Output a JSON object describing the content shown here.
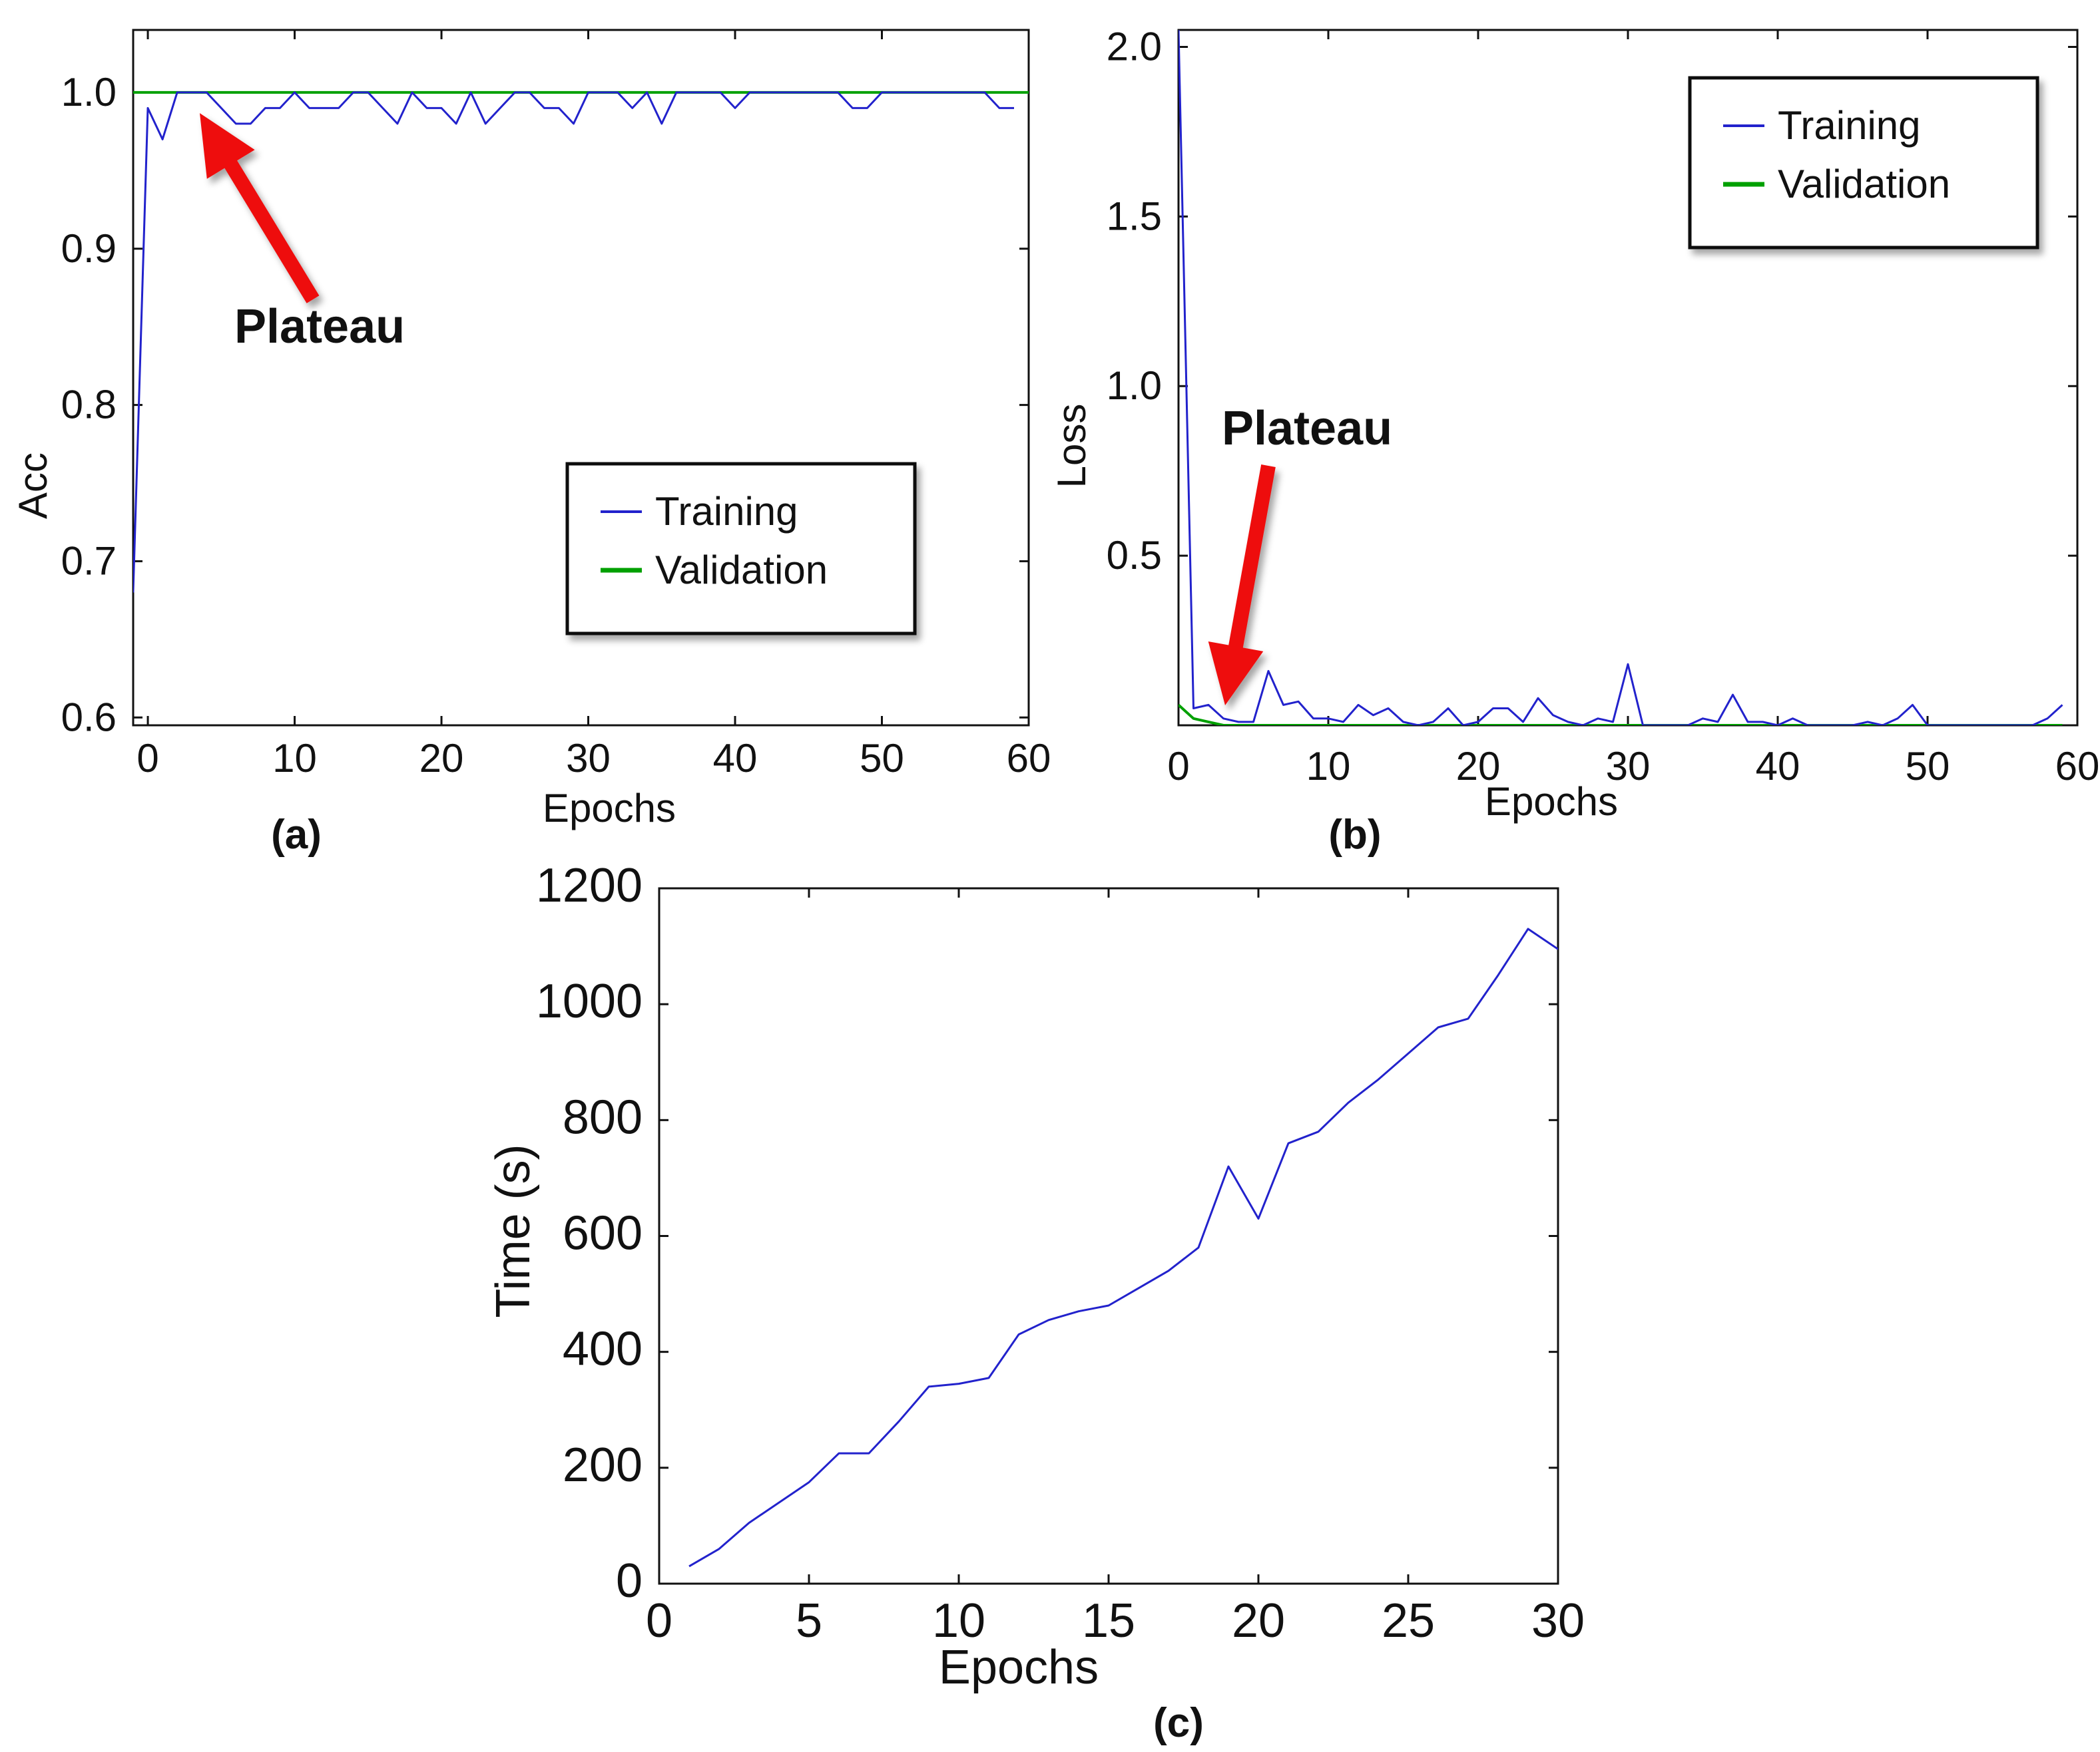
{
  "colors": {
    "training": "#2222cc",
    "validation": "#00a000",
    "arrow": "#ee1111",
    "axis": "#111111"
  },
  "chart_data": [
    {
      "id": "a",
      "type": "line",
      "panel_label": "(a)",
      "xlabel": "Epochs",
      "ylabel": "Acc",
      "xlim": [
        -1,
        60
      ],
      "ylim": [
        0.595,
        1.04
      ],
      "xticks": [
        0,
        10,
        20,
        30,
        40,
        50,
        60
      ],
      "xtick_labels": [
        "0",
        "10",
        "20",
        "30",
        "40",
        "50",
        "60"
      ],
      "yticks": [
        0.6,
        0.7,
        0.8,
        0.9,
        1.0
      ],
      "ytick_labels": [
        "0.6",
        "0.7",
        "0.8",
        "0.9",
        "1.0"
      ],
      "legend": {
        "entries": [
          "Training",
          "Validation"
        ],
        "placement": "center-right"
      },
      "annotation": {
        "text": "Plateau",
        "points_to": [
          4,
          1.0
        ]
      },
      "series": [
        {
          "name": "Training",
          "color_key": "training",
          "x": [
            -1,
            0,
            1,
            2,
            3,
            4,
            5,
            6,
            7,
            8,
            9,
            10,
            11,
            12,
            13,
            14,
            15,
            16,
            17,
            18,
            19,
            20,
            21,
            22,
            23,
            24,
            25,
            26,
            27,
            28,
            29,
            30,
            31,
            32,
            33,
            34,
            35,
            36,
            37,
            38,
            39,
            40,
            41,
            42,
            43,
            44,
            45,
            46,
            47,
            48,
            49,
            50,
            51,
            52,
            53,
            54,
            55,
            56,
            57,
            58,
            59
          ],
          "y": [
            0.68,
            0.99,
            0.97,
            1.0,
            1.0,
            1.0,
            0.99,
            0.98,
            0.98,
            0.99,
            0.99,
            1.0,
            0.99,
            0.99,
            0.99,
            1.0,
            1.0,
            0.99,
            0.98,
            1.0,
            0.99,
            0.99,
            0.98,
            1.0,
            0.98,
            0.99,
            1.0,
            1.0,
            0.99,
            0.99,
            0.98,
            1.0,
            1.0,
            1.0,
            0.99,
            1.0,
            0.98,
            1.0,
            1.0,
            1.0,
            1.0,
            0.99,
            1.0,
            1.0,
            1.0,
            1.0,
            1.0,
            1.0,
            1.0,
            0.99,
            0.99,
            1.0,
            1.0,
            1.0,
            1.0,
            1.0,
            1.0,
            1.0,
            1.0,
            0.99,
            0.99
          ]
        },
        {
          "name": "Validation",
          "color_key": "validation",
          "x": [
            -1,
            60
          ],
          "y": [
            1.0,
            1.0
          ]
        }
      ]
    },
    {
      "id": "b",
      "type": "line",
      "panel_label": "(b)",
      "xlabel": "Epochs",
      "ylabel": "Loss",
      "xlim": [
        0,
        60
      ],
      "ylim": [
        0.0,
        2.05
      ],
      "xticks": [
        0,
        10,
        20,
        30,
        40,
        50,
        60
      ],
      "xtick_labels": [
        "0",
        "10",
        "20",
        "30",
        "40",
        "50",
        "60"
      ],
      "yticks": [
        0.5,
        1.0,
        1.5,
        2.0
      ],
      "ytick_labels": [
        "0.5",
        "1.0",
        "1.5",
        "2.0"
      ],
      "legend": {
        "entries": [
          "Training",
          "Validation"
        ],
        "placement": "top-right"
      },
      "annotation": {
        "text": "Plateau",
        "points_to": [
          3.5,
          0.02
        ]
      },
      "series": [
        {
          "name": "Training",
          "color_key": "training",
          "x": [
            0,
            1,
            2,
            3,
            4,
            5,
            6,
            7,
            8,
            9,
            10,
            11,
            12,
            13,
            14,
            15,
            16,
            17,
            18,
            19,
            20,
            21,
            22,
            23,
            24,
            25,
            26,
            27,
            28,
            29,
            30,
            31,
            32,
            33,
            34,
            35,
            36,
            37,
            38,
            39,
            40,
            41,
            42,
            43,
            44,
            45,
            46,
            47,
            48,
            49,
            50,
            51,
            52,
            53,
            54,
            55,
            56,
            57,
            58,
            59
          ],
          "y": [
            2.05,
            0.05,
            0.06,
            0.02,
            0.01,
            0.01,
            0.16,
            0.06,
            0.07,
            0.02,
            0.02,
            0.01,
            0.06,
            0.03,
            0.05,
            0.01,
            0.0,
            0.01,
            0.05,
            0.0,
            0.01,
            0.05,
            0.05,
            0.01,
            0.08,
            0.03,
            0.01,
            0.0,
            0.02,
            0.01,
            0.18,
            0.0,
            0.0,
            0.0,
            0.0,
            0.02,
            0.01,
            0.09,
            0.01,
            0.01,
            0.0,
            0.02,
            0.0,
            0.0,
            0.0,
            0.0,
            0.01,
            0.0,
            0.02,
            0.06,
            0.0,
            0.0,
            0.0,
            0.0,
            0.0,
            0.0,
            0.0,
            0.0,
            0.02,
            0.06
          ]
        },
        {
          "name": "Validation",
          "color_key": "validation",
          "x": [
            0,
            1,
            2,
            3,
            4,
            5,
            10,
            20,
            30,
            40,
            50,
            59
          ],
          "y": [
            0.06,
            0.02,
            0.01,
            0.0,
            0.0,
            0.0,
            0.0,
            0.0,
            0.0,
            0.0,
            0.0,
            0.0
          ]
        }
      ]
    },
    {
      "id": "c",
      "type": "line",
      "panel_label": "(c)",
      "xlabel": "Epochs",
      "ylabel": "Time (s)",
      "xlim": [
        0,
        30
      ],
      "ylim": [
        0,
        1200
      ],
      "xticks": [
        0,
        5,
        10,
        15,
        20,
        25,
        30
      ],
      "xtick_labels": [
        "0",
        "5",
        "10",
        "15",
        "20",
        "25",
        "30"
      ],
      "yticks": [
        0,
        200,
        400,
        600,
        800,
        1000,
        1200
      ],
      "ytick_labels": [
        "0",
        "200",
        "400",
        "600",
        "800",
        "1000",
        "1200"
      ],
      "series": [
        {
          "name": "Time",
          "color_key": "training",
          "x": [
            1,
            2,
            3,
            4,
            5,
            6,
            7,
            8,
            9,
            10,
            11,
            12,
            13,
            14,
            15,
            16,
            17,
            18,
            19,
            20,
            21,
            22,
            23,
            24,
            25,
            26,
            27,
            28,
            29,
            30
          ],
          "y": [
            30,
            60,
            105,
            140,
            175,
            225,
            225,
            280,
            340,
            345,
            355,
            430,
            455,
            470,
            480,
            510,
            540,
            580,
            720,
            630,
            760,
            780,
            830,
            870,
            915,
            960,
            975,
            1050,
            1130,
            1095
          ]
        }
      ]
    }
  ]
}
